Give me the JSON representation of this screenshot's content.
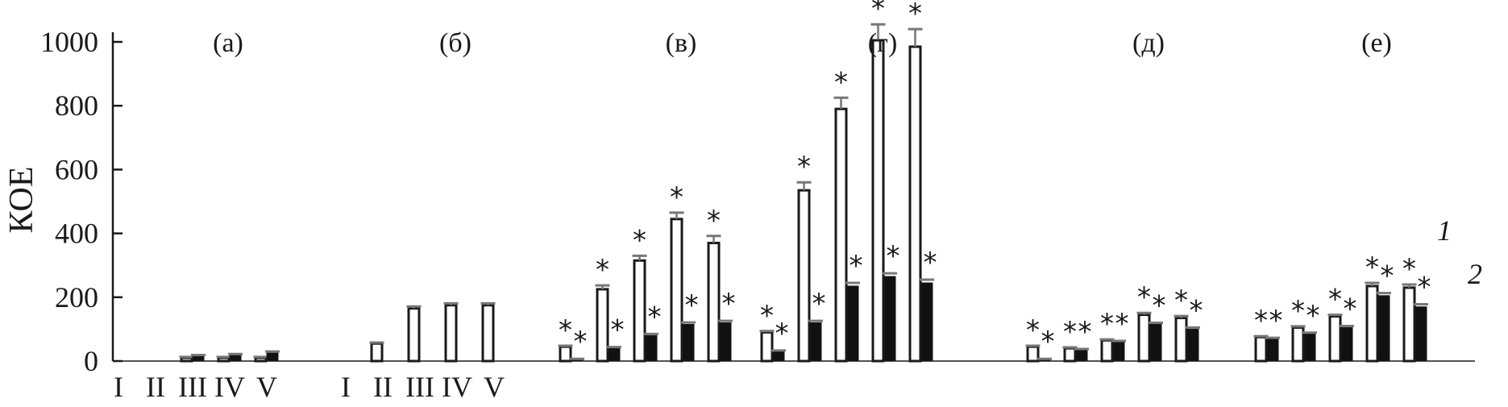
{
  "chart_data": {
    "type": "bar",
    "ylabel": "КОЕ",
    "ylim": [
      0,
      1000
    ],
    "yticks": [
      0,
      200,
      400,
      600,
      800,
      1000
    ],
    "legend": [
      "1",
      "2"
    ],
    "colors": {
      "series1_fill": "#ffffff",
      "series2_fill": "#111111",
      "stroke": "#1a1a1a",
      "errorbar": "#777777"
    },
    "groups": [
      {
        "label": "(а)",
        "categories": [
          "I",
          "II",
          "III",
          "IV",
          "V"
        ],
        "s1": [
          0,
          0,
          10,
          10,
          10
        ],
        "s2": [
          0,
          0,
          15,
          18,
          25
        ],
        "s1_err": [
          0,
          0,
          3,
          3,
          3
        ],
        "s2_err": [
          0,
          0,
          4,
          4,
          5
        ],
        "s1_star": [
          false,
          false,
          false,
          false,
          false
        ],
        "s2_star": [
          false,
          false,
          false,
          false,
          false
        ]
      },
      {
        "label": "(б)",
        "categories": [
          "I",
          "II",
          "III",
          "IV",
          "V"
        ],
        "s1": [
          0,
          55,
          165,
          175,
          175
        ],
        "s2": [
          0,
          0,
          0,
          0,
          0
        ],
        "s1_err": [
          0,
          3,
          6,
          6,
          6
        ],
        "s2_err": [
          0,
          0,
          0,
          0,
          0
        ],
        "s1_star": [
          false,
          false,
          false,
          false,
          false
        ],
        "s2_star": [
          false,
          false,
          false,
          false,
          false
        ]
      },
      {
        "label": "(в)",
        "categories": [
          "",
          "",
          "",
          "",
          ""
        ],
        "s1": [
          45,
          225,
          315,
          445,
          370
        ],
        "s2": [
          5,
          40,
          80,
          115,
          120
        ],
        "s1_err": [
          3,
          12,
          15,
          20,
          22
        ],
        "s2_err": [
          2,
          4,
          5,
          6,
          6
        ],
        "s1_star": [
          true,
          true,
          true,
          true,
          true
        ],
        "s2_star": [
          true,
          true,
          true,
          true,
          true
        ]
      },
      {
        "label": "(г)",
        "categories": [
          "",
          "",
          "",
          "",
          ""
        ],
        "s1": [
          90,
          535,
          790,
          1005,
          985
        ],
        "s2": [
          30,
          120,
          235,
          265,
          245
        ],
        "s1_err": [
          4,
          25,
          35,
          50,
          55
        ],
        "s2_err": [
          3,
          6,
          10,
          10,
          10
        ],
        "s1_star": [
          true,
          true,
          true,
          true,
          true
        ],
        "s2_star": [
          true,
          true,
          true,
          true,
          true
        ]
      },
      {
        "label": "(д)",
        "categories": [
          "",
          "",
          "",
          "",
          ""
        ],
        "s1": [
          45,
          40,
          65,
          145,
          135
        ],
        "s2": [
          5,
          35,
          60,
          115,
          100
        ],
        "s1_err": [
          3,
          3,
          3,
          6,
          6
        ],
        "s2_err": [
          2,
          3,
          3,
          5,
          5
        ],
        "s1_star": [
          true,
          true,
          true,
          true,
          true
        ],
        "s2_star": [
          true,
          true,
          true,
          true,
          true
        ]
      },
      {
        "label": "(е)",
        "categories": [
          "",
          "",
          "",
          "",
          ""
        ],
        "s1": [
          75,
          105,
          140,
          235,
          230
        ],
        "s2": [
          70,
          85,
          105,
          205,
          170
        ],
        "s1_err": [
          3,
          4,
          5,
          10,
          10
        ],
        "s2_err": [
          3,
          4,
          5,
          8,
          8
        ],
        "s1_star": [
          true,
          true,
          true,
          true,
          true
        ],
        "s2_star": [
          true,
          true,
          true,
          true,
          true
        ]
      }
    ]
  }
}
